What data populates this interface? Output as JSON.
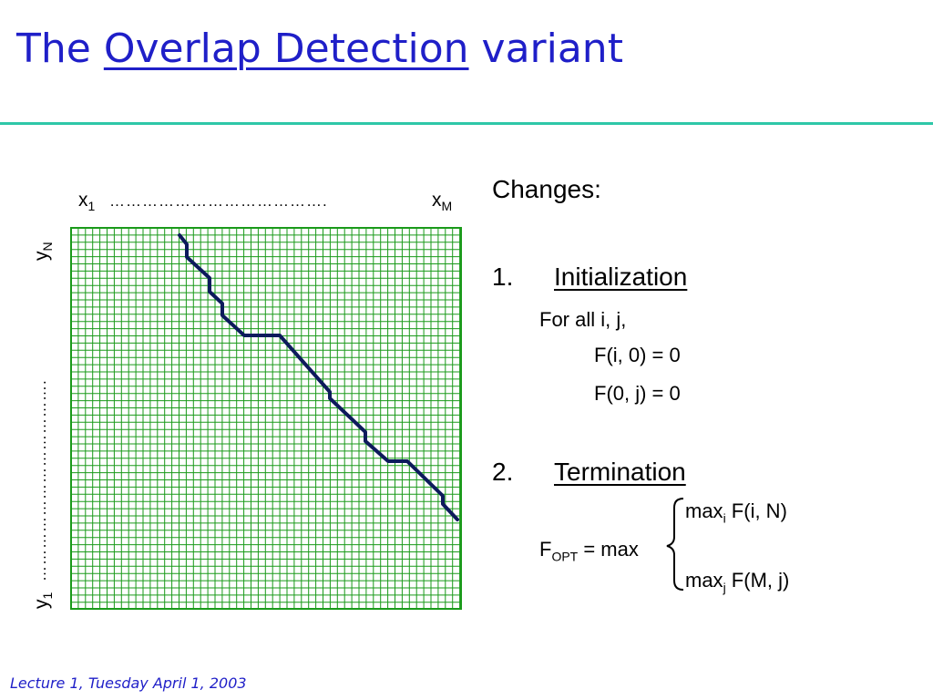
{
  "title": {
    "prefix": "The",
    "highlight": "Overlap Detection",
    "suffix": "variant"
  },
  "diagram": {
    "x_start": "x",
    "x_start_sub": "1",
    "x_dots": "………………………………….",
    "x_end": "x",
    "x_end_sub": "M",
    "y_start": "y",
    "y_start_sub": "1",
    "y_dots": "……………………………….",
    "y_end": "y",
    "y_end_sub": "N",
    "grid_color": "#1a9a1a",
    "path_color": "#0d1a5c"
  },
  "changes": {
    "heading": "Changes:",
    "init": {
      "number": "1.",
      "label": "Initialization",
      "line1": "For all i, j,",
      "line2": "F(i, 0) = 0",
      "line3": "F(0, j) = 0"
    },
    "term": {
      "number": "2.",
      "label": "Termination",
      "fopt": "F",
      "fopt_sub": "OPT",
      "fopt_rest": " = max",
      "opt1_max": "max",
      "opt1_sub": "i",
      "opt1_rest": " F(i, N)",
      "opt2_max": "max",
      "opt2_sub": "j",
      "opt2_rest": " F(M, j)"
    }
  },
  "footer": "Lecture 1, Tuesday April 1, 2003"
}
